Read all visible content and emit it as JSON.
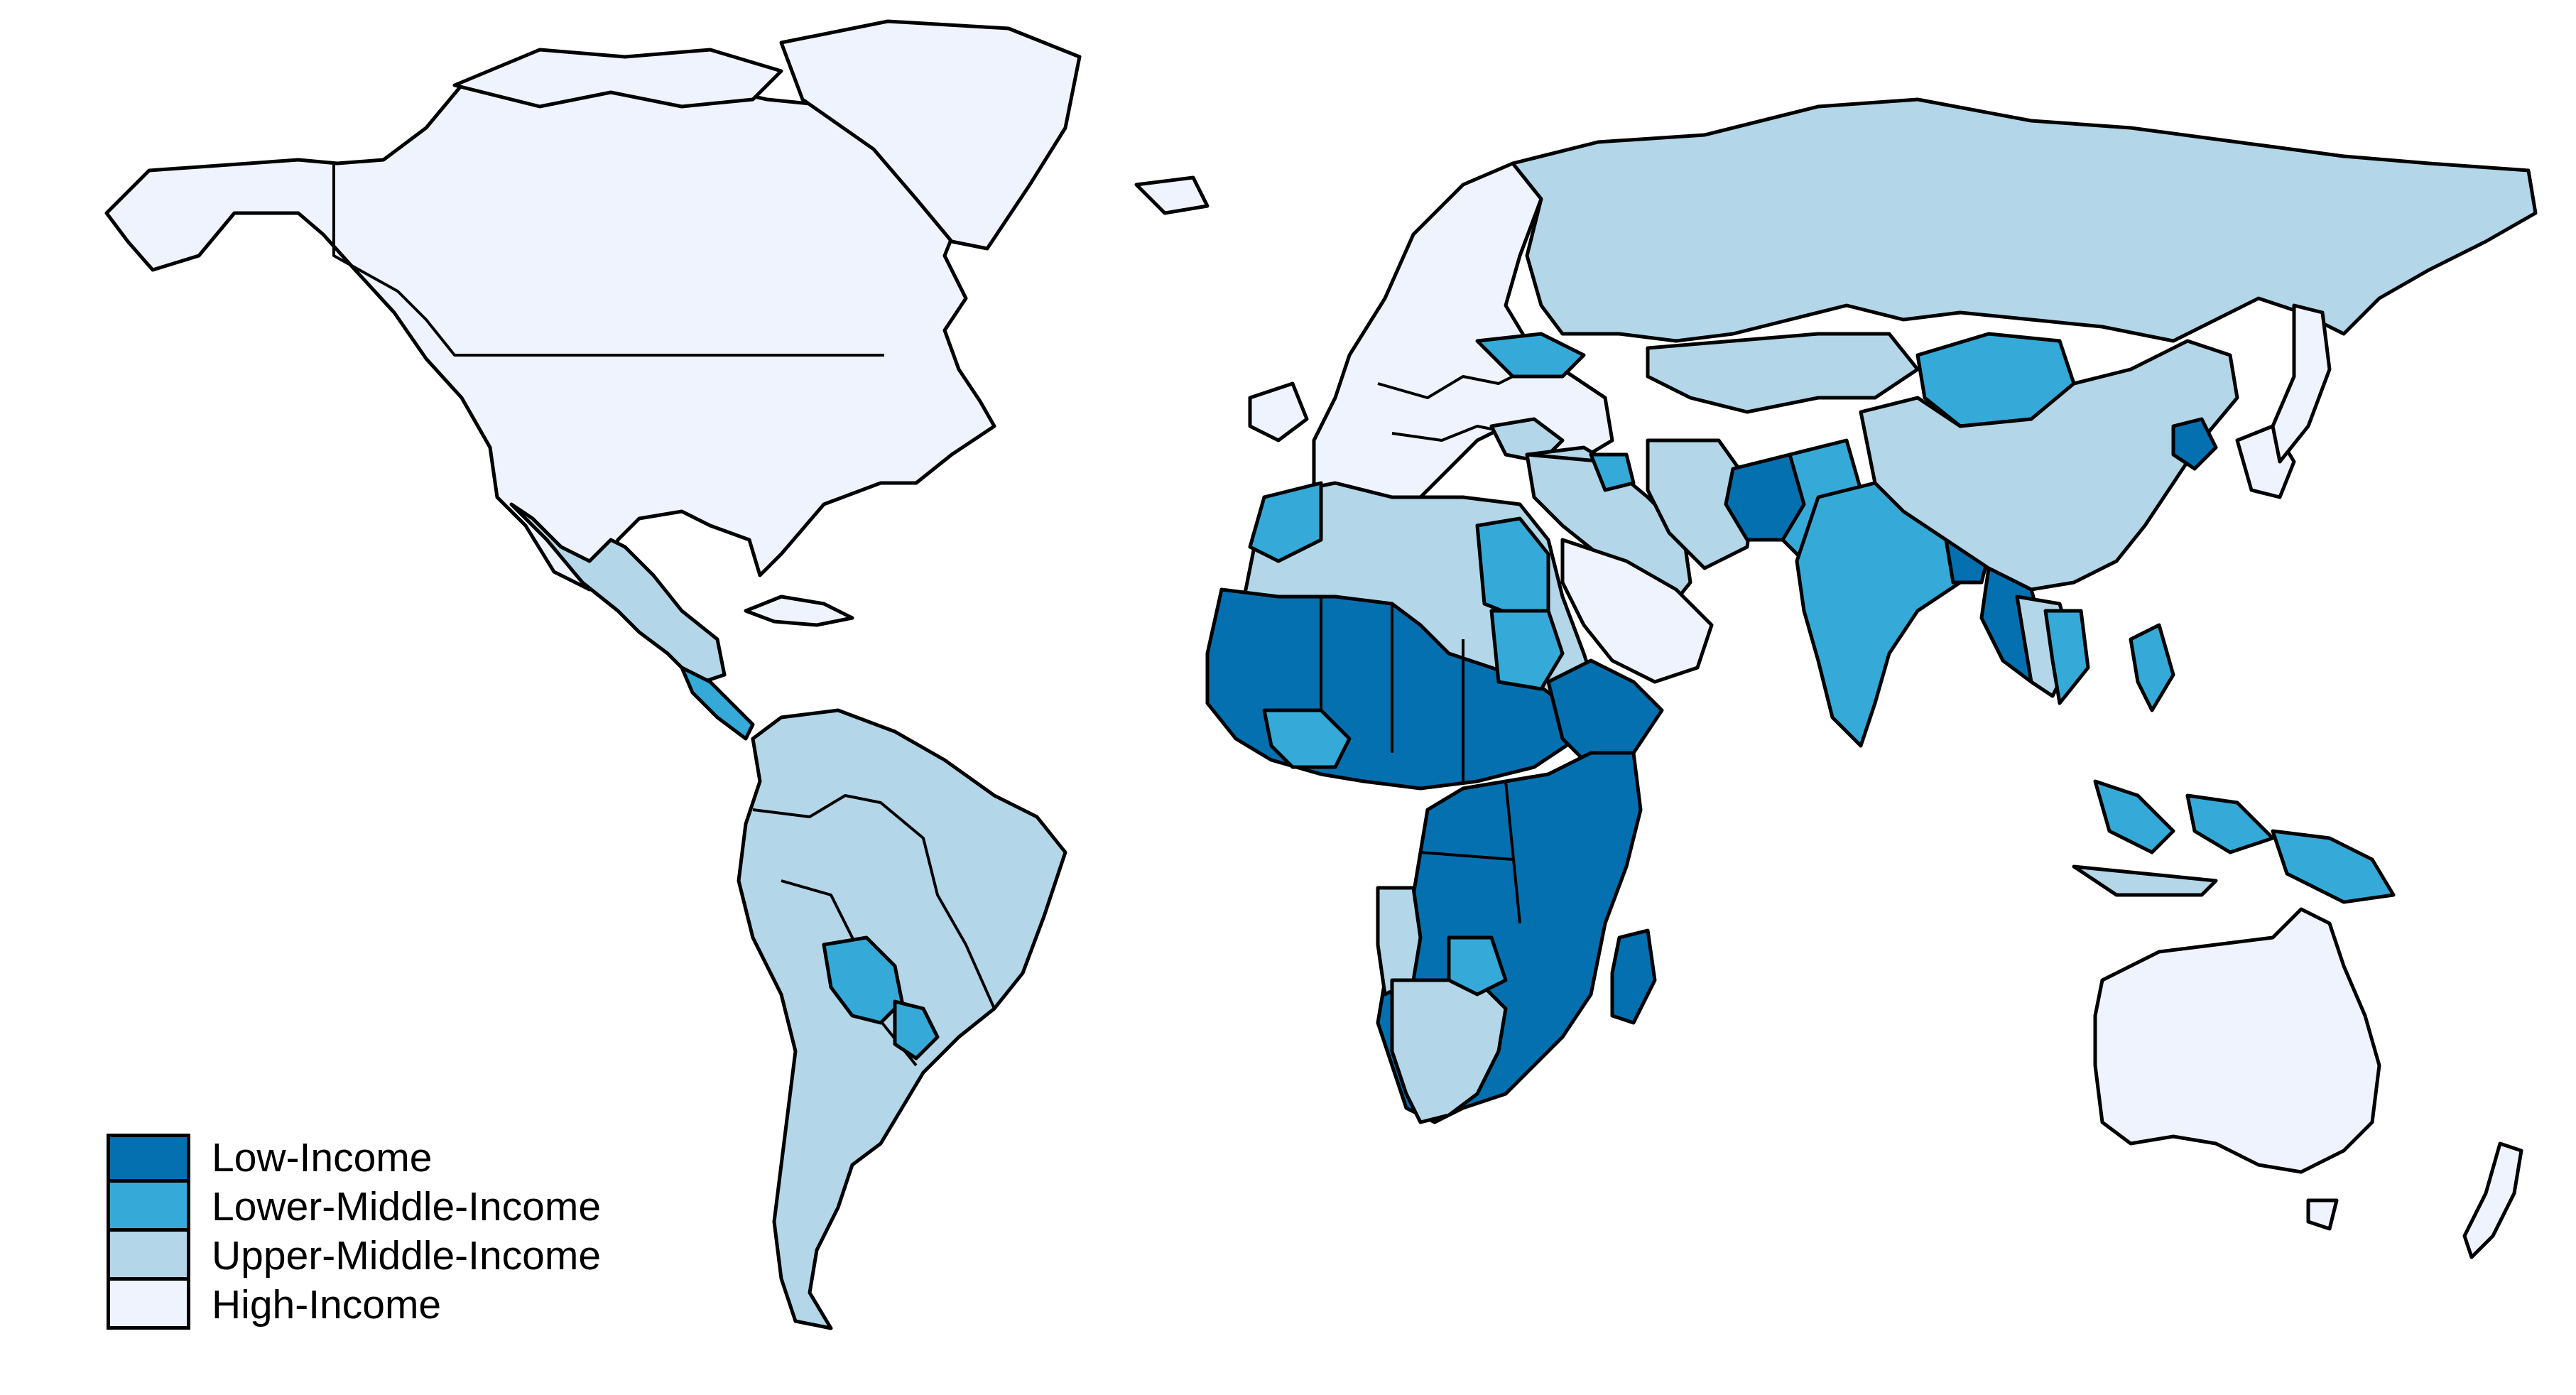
{
  "legend": {
    "items": [
      {
        "label": "Low-Income",
        "color": "#0570b0"
      },
      {
        "label": "Lower-Middle-Income",
        "color": "#35aad8"
      },
      {
        "label": "Upper-Middle-Income",
        "color": "#b3d6e8"
      },
      {
        "label": "High-Income",
        "color": "#eef3fd"
      }
    ]
  },
  "map": {
    "projection": "equirectangular world map",
    "classified_by": "income group"
  }
}
